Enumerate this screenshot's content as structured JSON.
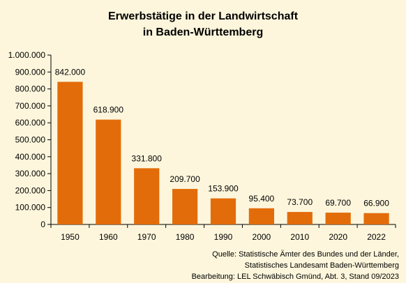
{
  "chart_data": {
    "type": "bar",
    "title": [
      "Erwerbstätige in der Landwirtschaft",
      "in Baden-Württemberg"
    ],
    "categories": [
      "1950",
      "1960",
      "1970",
      "1980",
      "1990",
      "2000",
      "2010",
      "2020",
      "2022"
    ],
    "values": [
      842000,
      618900,
      331800,
      209700,
      153900,
      95400,
      73700,
      69700,
      66900
    ],
    "value_labels": [
      "842.000",
      "618.900",
      "331.800",
      "209.700",
      "153.900",
      "95.400",
      "73.700",
      "69.700",
      "66.900"
    ],
    "ylim": [
      0,
      1000000
    ],
    "yticks": [
      0,
      100000,
      200000,
      300000,
      400000,
      500000,
      600000,
      700000,
      800000,
      900000,
      1000000
    ],
    "ytick_labels": [
      "0",
      "100.000",
      "200.000",
      "300.000",
      "400.000",
      "500.000",
      "600.000",
      "700.000",
      "800.000",
      "900.000",
      "1.000.000"
    ],
    "xlabel": "",
    "ylabel": "",
    "grid": false,
    "bar_color": "#e36c0a"
  },
  "source": {
    "line1": "Quelle: Statistische Ämter des Bundes und der Länder,",
    "line2": "Statistisches Landesamt Baden-Württemberg",
    "line3": "Bearbeitung: LEL Schwäbisch Gmünd, Abt. 3, Stand 09/2023"
  }
}
